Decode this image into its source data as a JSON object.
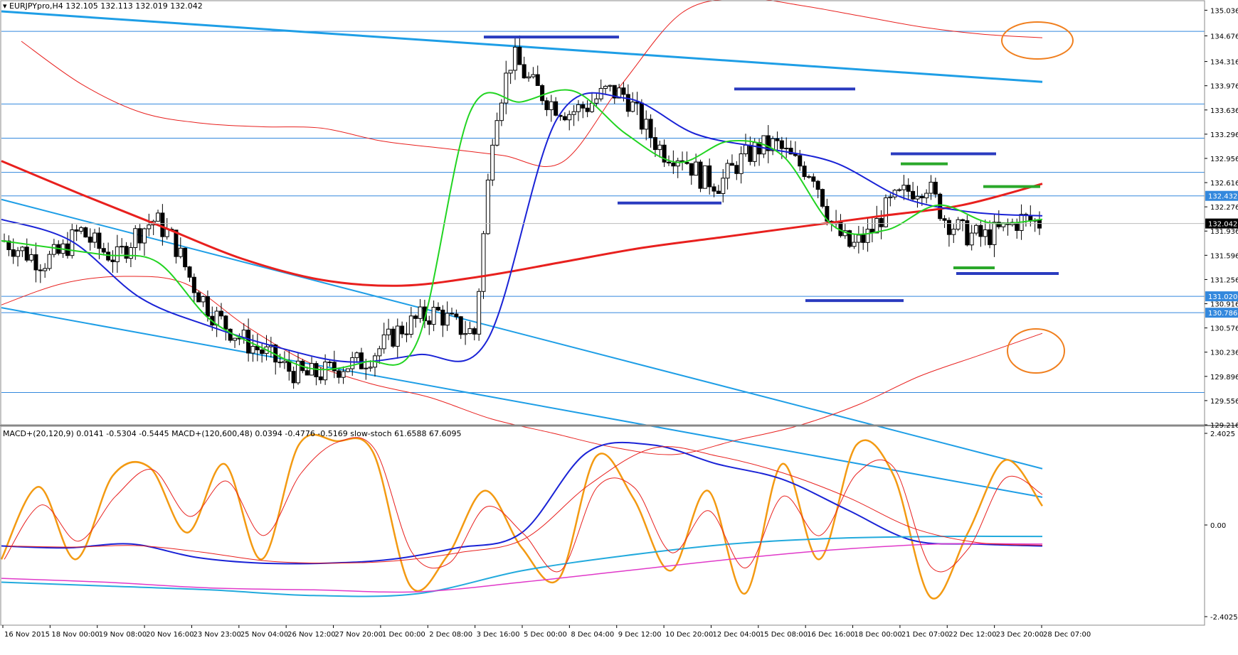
{
  "window": {
    "symbol_info": "EURJPYpro,H4  132.105 132.113 132.019 132.042",
    "indicator_info": "MACD+(20,120,9) 0.0141 -0.5304 -0.5445  MACD+(120,600,48) 0.0394 -0.4776 -0.5169  slow-stoch 61.6588 67.6095"
  },
  "colors": {
    "bull_candle": "#ffffff",
    "bear_candle": "#000000",
    "trend_line": "#1e9ee6",
    "ma_red": "#e8201e",
    "ma_blue": "#1a23d6",
    "ma_green": "#22d422",
    "level_line": "#3388dd",
    "level_dark": "#2a3bbf",
    "level_green": "#2aa82a",
    "circle": "#f07f1e",
    "stoch": "#f39a12",
    "macd_pink": "#e039c9"
  },
  "chart_data": [
    {
      "type": "candlestick",
      "title": "EURJPYpro,H4",
      "ylim": [
        129.216,
        135.0
      ],
      "y_ticks": [
        "135.036",
        "134.676",
        "134.316",
        "133.976",
        "133.636",
        "133.296",
        "132.956",
        "132.616",
        "132.276",
        "131.936",
        "131.596",
        "131.256",
        "130.916",
        "130.576",
        "130.236",
        "129.896",
        "129.556",
        "129.216"
      ],
      "price_labels": {
        "current": "132.042",
        "upper_level": "132.432",
        "level_a": "131.020",
        "level_b": "130.786"
      },
      "x_labels": [
        "16 Nov 2015",
        "18 Nov 00:00",
        "19 Nov 08:00",
        "20 Nov 16:00",
        "23 Nov 23:00",
        "25 Nov 04:00",
        "26 Nov 12:00",
        "27 Nov 20:00",
        "1 Dec 00:00",
        "2 Dec 08:00",
        "3 Dec 16:00",
        "5 Dec 00:00",
        "8 Dec 04:00",
        "9 Dec 12:00",
        "10 Dec 20:00",
        "12 Dec 04:00",
        "15 Dec 08:00",
        "16 Dec 16:00",
        "18 Dec 00:00",
        "21 Dec 07:00",
        "22 Dec 12:00",
        "23 Dec 20:00",
        "28 Dec 07:00"
      ],
      "horizontal_levels": [
        134.74,
        133.72,
        133.24,
        132.76,
        132.43,
        131.02,
        130.79,
        129.67
      ],
      "close_path": [
        131.8,
        131.65,
        131.5,
        131.62,
        131.95,
        131.7,
        131.55,
        131.9,
        132.1,
        131.8,
        131.2,
        130.8,
        130.55,
        130.35,
        130.2,
        130.0,
        129.9,
        129.95,
        130.05,
        130.1,
        130.3,
        130.55,
        130.7,
        130.8,
        130.6,
        130.5,
        133.5,
        134.4,
        134.0,
        133.75,
        133.6,
        133.7,
        133.9,
        133.85,
        133.4,
        133.05,
        133.0,
        132.7,
        132.6,
        132.9,
        133.1,
        133.15,
        132.9,
        132.75,
        132.0,
        131.7,
        131.9,
        132.3,
        132.5,
        132.6,
        132.1,
        131.9,
        131.85,
        131.95,
        132.1,
        132.05
      ],
      "upper_band": [
        134.6,
        134.0,
        133.6,
        133.45,
        133.4,
        133.38,
        133.2,
        133.1,
        133.0,
        132.9,
        134.0,
        135.0,
        135.2,
        135.1,
        134.95,
        134.8,
        134.7,
        134.65
      ],
      "lower_band": [
        130.9,
        131.2,
        131.3,
        131.2,
        130.6,
        130.1,
        129.8,
        129.6,
        129.3,
        129.1,
        128.9,
        128.8,
        129.0,
        129.2,
        129.5,
        129.9,
        130.2,
        130.5
      ],
      "ma_red_path": [
        132.92,
        132.45,
        132.0,
        131.55,
        131.25,
        131.17,
        131.3,
        131.5,
        131.7,
        131.85,
        132.0,
        132.15,
        132.3,
        132.6
      ],
      "ma_blue_path": [
        132.1,
        131.8,
        131.0,
        130.6,
        130.3,
        130.1,
        130.2,
        130.4,
        133.5,
        133.8,
        133.3,
        133.1,
        132.9,
        132.4,
        132.2,
        132.15
      ],
      "ma_green_path": [
        131.8,
        131.7,
        131.6,
        131.5,
        130.7,
        130.3,
        130.0,
        130.1,
        130.4,
        133.6,
        133.75,
        133.9,
        133.3,
        132.9,
        133.2,
        133.0,
        132.0,
        131.95,
        132.3,
        132.05,
        132.1
      ],
      "trend_lines": [
        {
          "from": [
            0,
            135.02
          ],
          "to": [
            1,
            134.03
          ]
        },
        {
          "from": [
            0,
            132.38
          ],
          "to": [
            1,
            128.6
          ]
        },
        {
          "from": [
            0,
            130.86
          ],
          "to": [
            1,
            128.2
          ]
        }
      ],
      "segments": {
        "dark": [
          [
            134.66
          ],
          [
            133.93
          ],
          [
            132.33
          ],
          [
            130.96
          ],
          [
            133.02
          ],
          [
            131.34
          ]
        ],
        "green": [
          [
            132.88
          ],
          [
            132.56
          ],
          [
            131.42
          ]
        ]
      }
    },
    {
      "type": "line",
      "title": "MACD+(20,120,9) / slow-stoch",
      "ylim": [
        -2.4025,
        2.4025
      ],
      "y_ticks": [
        "2.4025",
        "0.00",
        "-2.4025"
      ],
      "series": [
        {
          "values": [
            -0.9,
            1.0,
            -0.9,
            1.3,
            1.5,
            -0.2,
            1.6,
            -0.9,
            2.1,
            2.2,
            1.9,
            -1.6,
            -0.8,
            0.9,
            -0.6,
            -1.4,
            1.8,
            0.7,
            -1.2,
            0.9,
            -1.8,
            1.6,
            -0.9,
            2.1,
            1.3,
            -1.9,
            -0.2,
            1.7,
            0.5
          ]
        },
        {
          "values": [
            -0.55,
            -0.6,
            -0.5,
            -0.85,
            -1.0,
            -1.0,
            -0.9,
            -0.6,
            -0.2,
            1.9,
            2.1,
            1.6,
            1.2,
            0.4,
            -0.4,
            -0.5,
            -0.55
          ]
        },
        {
          "values": [
            -1.5,
            -1.6,
            -1.7,
            -1.85,
            -1.8,
            -1.2,
            -0.8,
            -0.5,
            -0.35,
            -0.3,
            -0.3
          ]
        },
        {
          "values": [
            -1.4,
            -1.5,
            -1.65,
            -1.7,
            -1.75,
            -1.5,
            -1.2,
            -0.9,
            -0.65,
            -0.5,
            -0.5
          ]
        }
      ]
    }
  ]
}
